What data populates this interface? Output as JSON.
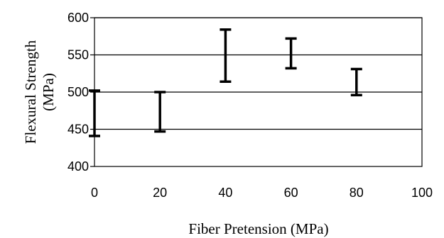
{
  "chart_data": {
    "type": "errorbar",
    "xlabel": "Fiber Pretension (MPa)",
    "ylabel_lines": [
      "Flexural Strength",
      "(MPa)"
    ],
    "xlim": [
      0,
      100
    ],
    "ylim": [
      400,
      600
    ],
    "xticks": [
      0,
      20,
      40,
      60,
      80,
      100
    ],
    "yticks": [
      400,
      450,
      500,
      550,
      600
    ],
    "gridlines_y": [
      450,
      500,
      550,
      600
    ],
    "grid": "horizontal",
    "legend": "none",
    "points": [
      {
        "x": 0,
        "low": 441,
        "high": 502
      },
      {
        "x": 20,
        "low": 447,
        "high": 500
      },
      {
        "x": 40,
        "low": 514,
        "high": 584
      },
      {
        "x": 60,
        "low": 532,
        "high": 572
      },
      {
        "x": 80,
        "low": 496,
        "high": 531
      }
    ],
    "colors": {
      "bars": "#000000",
      "grid": "#000000",
      "axis": "#000000"
    }
  }
}
